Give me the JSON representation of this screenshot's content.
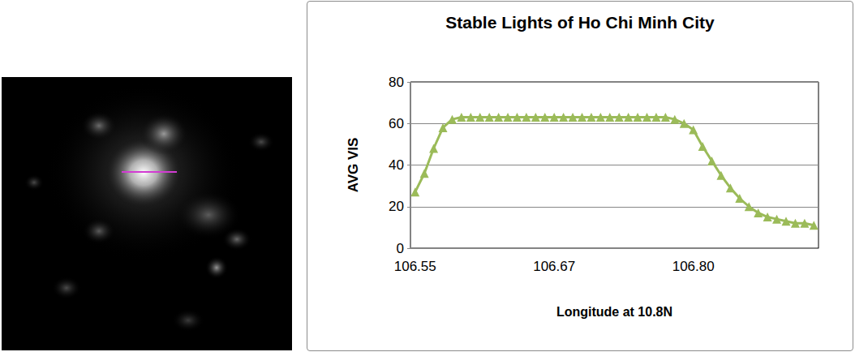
{
  "chart_data": {
    "type": "line",
    "title": "Stable Lights of Ho Chi Minh City",
    "x_label": "Longitude at 10.8N",
    "y_label": "AVG VIS",
    "categories": [
      "106.55",
      null,
      null,
      null,
      null,
      null,
      null,
      null,
      null,
      null,
      null,
      null,
      null,
      null,
      null,
      "106.67",
      null,
      null,
      null,
      null,
      null,
      null,
      null,
      null,
      null,
      null,
      null,
      null,
      null,
      null,
      "106.80",
      null,
      null,
      null,
      null,
      null,
      null,
      null,
      null,
      null,
      null,
      null,
      null,
      null
    ],
    "values": [
      27,
      36,
      48,
      58,
      62,
      63,
      63,
      63,
      63,
      63,
      63,
      63,
      63,
      63,
      63,
      63,
      63,
      63,
      63,
      63,
      63,
      63,
      63,
      63,
      63,
      63,
      63,
      63,
      62,
      60,
      57,
      49,
      42,
      35,
      29,
      24,
      20,
      17,
      15,
      14,
      13,
      12,
      12,
      11
    ],
    "color": "#9bbb59",
    "marker": "triangle",
    "ylim": [
      0,
      80
    ],
    "yticks": [
      0,
      20,
      40,
      60,
      80
    ],
    "grid": true
  }
}
